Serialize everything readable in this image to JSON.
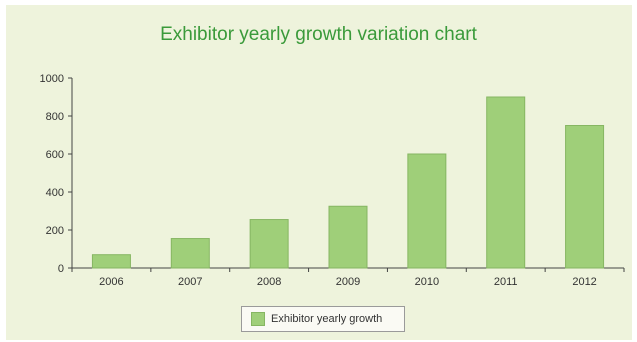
{
  "chart_data": {
    "type": "bar",
    "title": "Exhibitor yearly growth variation chart",
    "categories": [
      "2006",
      "2007",
      "2008",
      "2009",
      "2010",
      "2011",
      "2012"
    ],
    "series": [
      {
        "name": "Exhibitor yearly growth",
        "values": [
          70,
          155,
          255,
          325,
          600,
          900,
          750
        ]
      }
    ],
    "ylim": [
      0,
      1000
    ],
    "yticks": [
      0,
      200,
      400,
      600,
      800,
      1000
    ],
    "xlabel": "",
    "ylabel": "",
    "grid": false,
    "legend_position": "bottom",
    "colors": {
      "bar": "#9fcf79",
      "bar_edge": "#86b662",
      "title": "#3a9a3a",
      "background": "#eef3dc"
    }
  }
}
